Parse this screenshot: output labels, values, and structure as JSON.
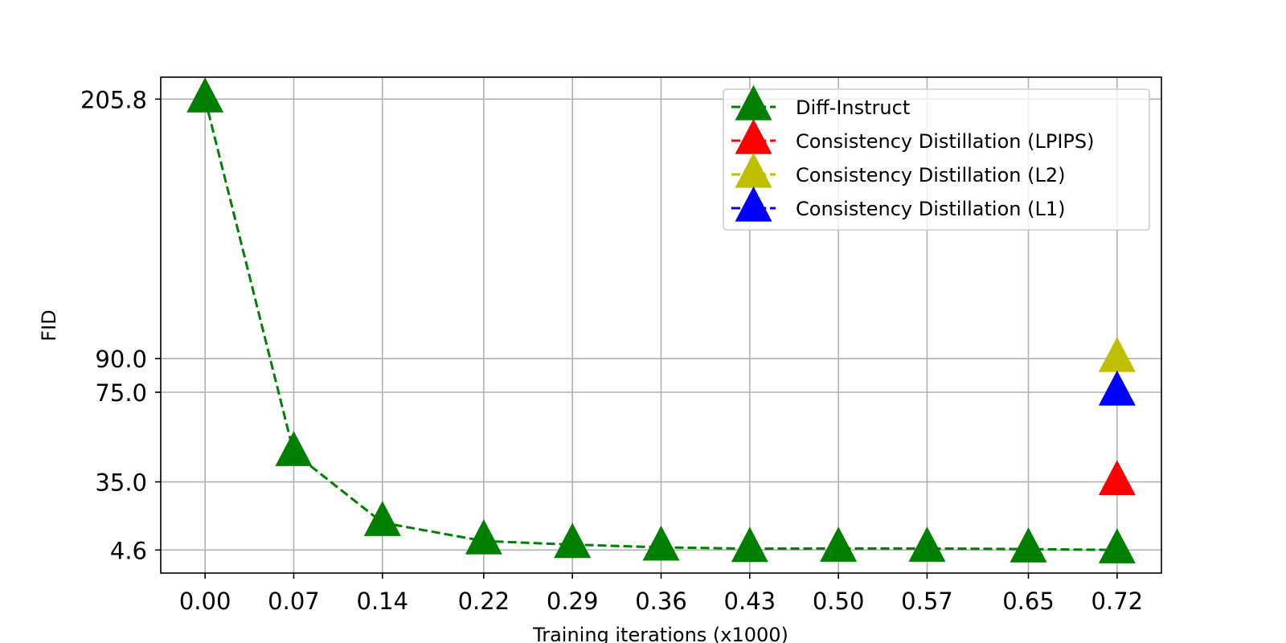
{
  "chart_data": {
    "type": "line",
    "title": "",
    "xlabel": "Training iterations (x1000)",
    "ylabel": "FID",
    "x_tick_labels": [
      "0.00",
      "0.07",
      "0.14",
      "0.22",
      "0.29",
      "0.36",
      "0.43",
      "0.50",
      "0.57",
      "0.65",
      "0.72"
    ],
    "x_ticks": [
      0.0,
      0.07,
      0.14,
      0.22,
      0.29,
      0.36,
      0.43,
      0.5,
      0.57,
      0.65,
      0.72
    ],
    "xlim": [
      -0.035,
      0.755
    ],
    "y_tick_labels": [
      "4.6",
      "35.0",
      "75.0",
      "90.0",
      "205.8"
    ],
    "y_ticks": [
      4.6,
      35.0,
      75.0,
      90.0,
      205.8
    ],
    "ylim": [
      -5.7,
      215.6
    ],
    "grid": true,
    "legend_position": "top-right",
    "series": [
      {
        "name": "Diff-Instruct",
        "color": "#008000",
        "line_style": "dashed",
        "marker": "triangle-up",
        "x": [
          0.0,
          0.07,
          0.14,
          0.22,
          0.29,
          0.36,
          0.43,
          0.5,
          0.57,
          0.65,
          0.72
        ],
        "y": [
          205.8,
          48.0,
          16.8,
          8.6,
          7.0,
          5.8,
          5.2,
          5.3,
          5.3,
          5.0,
          4.6
        ]
      },
      {
        "name": "Consistency Distillation (LPIPS)",
        "color": "#ff0000",
        "line_style": "dashed",
        "marker": "triangle-up",
        "x": [
          0.72
        ],
        "y": [
          35.0
        ]
      },
      {
        "name": "Consistency Distillation (L2)",
        "color": "#bfbf00",
        "line_style": "dashed",
        "marker": "triangle-up",
        "x": [
          0.72
        ],
        "y": [
          90.0
        ]
      },
      {
        "name": "Consistency Distillation (L1)",
        "color": "#0000ff",
        "line_style": "dashed",
        "marker": "triangle-up",
        "x": [
          0.72
        ],
        "y": [
          75.0
        ]
      }
    ]
  }
}
